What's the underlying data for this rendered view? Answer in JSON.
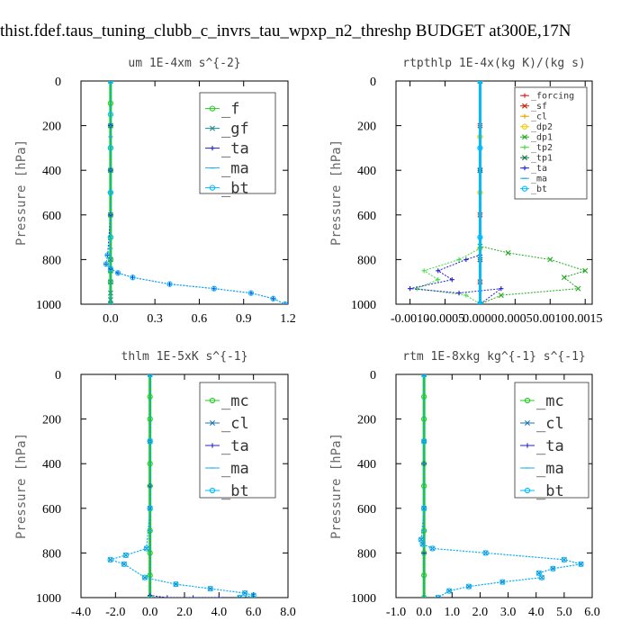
{
  "figure_title": "thist.fdef.taus_tuning_clubb_c_invrs_tau_wpxp_n2_threshp  BUDGET at300E,17N",
  "chart_data": [
    {
      "type": "line",
      "title": "um  1E-4xm s^{-2}",
      "ylabel": "Pressure [hPa]",
      "xlim": [
        -0.2,
        1.2
      ],
      "ylim": [
        1000,
        0
      ],
      "xticks": [
        0.0,
        0.3,
        0.6,
        0.9,
        1.2
      ],
      "xtick_labels": [
        "0.0",
        "0.3",
        "0.6",
        "0.9",
        "1.2"
      ],
      "yticks": [
        0,
        200,
        400,
        600,
        800,
        1000
      ],
      "ytick_labels": [
        "0",
        "200",
        "400",
        "600",
        "800",
        "1000"
      ],
      "legend_position": "top-right",
      "series": [
        {
          "name": "_f",
          "color": "#22cc22",
          "marker": "o",
          "x": [
            0,
            0,
            0,
            0,
            0,
            0,
            0,
            0,
            0,
            0,
            0,
            0
          ],
          "y": [
            0,
            100,
            200,
            300,
            400,
            500,
            600,
            700,
            800,
            850,
            900,
            1000
          ]
        },
        {
          "name": "_gf",
          "color": "#1f8f8f",
          "marker": "x",
          "x": [
            0,
            0,
            0,
            0,
            0,
            0,
            0,
            0,
            0,
            0
          ],
          "y": [
            0,
            200,
            400,
            600,
            800,
            850,
            900,
            950,
            980,
            1000
          ]
        },
        {
          "name": "_ta",
          "color": "#2222cc",
          "marker": "+",
          "x": [
            0,
            0,
            0,
            0,
            -0.02,
            -0.03,
            0,
            0.05,
            0.15,
            0.4,
            0.7,
            0.95,
            1.1,
            1.18
          ],
          "y": [
            0,
            200,
            400,
            600,
            780,
            820,
            840,
            860,
            880,
            910,
            930,
            950,
            975,
            1000
          ]
        },
        {
          "name": "_ma",
          "color": "#22aaee",
          "marker": "-",
          "x": [
            0,
            0,
            0,
            0,
            0
          ],
          "y": [
            0,
            250,
            500,
            750,
            1000
          ]
        },
        {
          "name": "_bt",
          "color": "#00bbff",
          "marker": "o",
          "x": [
            0,
            0,
            0,
            0,
            0,
            -0.02,
            -0.03,
            0,
            0.05,
            0.15,
            0.4,
            0.7,
            0.95,
            1.1,
            1.18
          ],
          "y": [
            0,
            150,
            300,
            500,
            700,
            780,
            820,
            840,
            860,
            880,
            910,
            930,
            950,
            975,
            1000
          ]
        }
      ]
    },
    {
      "type": "line",
      "title": "rtpthlp  1E-4x(kg K)/(kg s)",
      "ylabel": "Pressure [hPa]",
      "xlim": [
        -0.0012,
        0.0016
      ],
      "ylim": [
        1000,
        0
      ],
      "xticks": [
        -0.001,
        -0.0005,
        0.0,
        0.0005,
        0.001,
        0.0015
      ],
      "xtick_labels": [
        "-0.0010",
        "-0.0005",
        "0.0000",
        "0.0005",
        "0.0010",
        "0.0015"
      ],
      "yticks": [
        0,
        200,
        400,
        600,
        800,
        1000
      ],
      "ytick_labels": [
        "0",
        "200",
        "400",
        "600",
        "800",
        "1000"
      ],
      "legend_position": "top-right",
      "series": [
        {
          "name": "_forcing",
          "color": "#dd2222",
          "marker": "+",
          "x": [
            0,
            0,
            0,
            0,
            0,
            0,
            0
          ],
          "y": [
            0,
            200,
            400,
            600,
            800,
            900,
            1000
          ]
        },
        {
          "name": "_sf",
          "color": "#cc2200",
          "marker": "x",
          "x": [
            0,
            0,
            0,
            0,
            0,
            0,
            0
          ],
          "y": [
            0,
            200,
            400,
            600,
            800,
            900,
            1000
          ]
        },
        {
          "name": "_cl",
          "color": "#ddaa00",
          "marker": "+",
          "x": [
            0,
            0,
            0,
            0,
            0
          ],
          "y": [
            0,
            250,
            500,
            750,
            1000
          ]
        },
        {
          "name": "_dp2",
          "color": "#eecc00",
          "marker": "o",
          "x": [
            0,
            0,
            0,
            0,
            0
          ],
          "y": [
            0,
            250,
            500,
            750,
            1000
          ]
        },
        {
          "name": "_dp1",
          "color": "#22aa22",
          "marker": "x",
          "x": [
            0,
            0,
            0,
            0.0004,
            0.001,
            0.0015,
            0.0012,
            0.0014,
            0.0003,
            0
          ],
          "y": [
            0,
            400,
            740,
            770,
            800,
            850,
            880,
            930,
            960,
            1000
          ]
        },
        {
          "name": "_tp2",
          "color": "#44dd44",
          "marker": "+",
          "x": [
            0,
            0,
            0,
            -0.0003,
            -0.0008,
            -0.0006,
            -0.0009,
            -0.0002,
            0
          ],
          "y": [
            0,
            400,
            750,
            800,
            850,
            890,
            930,
            960,
            1000
          ]
        },
        {
          "name": "_tp1",
          "color": "#117744",
          "marker": "x",
          "x": [
            0,
            0,
            0,
            0
          ],
          "y": [
            0,
            400,
            800,
            1000
          ]
        },
        {
          "name": "_ta",
          "color": "#2222cc",
          "marker": "+",
          "x": [
            0,
            0,
            0,
            -0.0002,
            -0.0006,
            -0.0004,
            -0.001,
            -0.0003,
            0.0003,
            0
          ],
          "y": [
            0,
            400,
            780,
            800,
            850,
            890,
            930,
            950,
            930,
            1000
          ]
        },
        {
          "name": "_ma",
          "color": "#22aaee",
          "marker": "-",
          "x": [
            0,
            0,
            0,
            0
          ],
          "y": [
            0,
            300,
            700,
            1000
          ]
        },
        {
          "name": "_bt",
          "color": "#00bbff",
          "marker": "o",
          "x": [
            0,
            0,
            0,
            0
          ],
          "y": [
            0,
            300,
            700,
            1000
          ]
        }
      ]
    },
    {
      "type": "line",
      "title": "thlm  1E-5xK s^{-1}",
      "ylabel": "Pressure [hPa]",
      "xlim": [
        -4.0,
        8.0
      ],
      "ylim": [
        1000,
        0
      ],
      "xticks": [
        -4.0,
        -2.0,
        0.0,
        2.0,
        4.0,
        6.0,
        8.0
      ],
      "xtick_labels": [
        "-4.0",
        "-2.0",
        "0.0",
        "2.0",
        "4.0",
        "6.0",
        "8.0"
      ],
      "yticks": [
        0,
        200,
        400,
        600,
        800,
        1000
      ],
      "ytick_labels": [
        "0",
        "200",
        "400",
        "600",
        "800",
        "1000"
      ],
      "legend_position": "top-right",
      "series": [
        {
          "name": "_mc",
          "color": "#22cc22",
          "marker": "o",
          "x": [
            0,
            0,
            0,
            0,
            0,
            0,
            0,
            0,
            0,
            0,
            0
          ],
          "y": [
            0,
            100,
            200,
            300,
            400,
            500,
            600,
            700,
            800,
            900,
            1000
          ]
        },
        {
          "name": "_cl",
          "color": "#1f77b4",
          "marker": "x",
          "x": [
            0,
            0,
            0,
            -0.2,
            -1.4,
            -2.3,
            -1.5,
            -0.3,
            1.5,
            3.5,
            5.5,
            6.0,
            5.2
          ],
          "y": [
            0,
            300,
            600,
            780,
            810,
            830,
            850,
            910,
            940,
            960,
            980,
            990,
            1000
          ]
        },
        {
          "name": "_ta",
          "color": "#2222cc",
          "marker": "+",
          "x": [
            0,
            0,
            0,
            1.0,
            2.5,
            4.0
          ],
          "y": [
            0,
            500,
            990,
            1000,
            1000,
            1000
          ]
        },
        {
          "name": "_ma",
          "color": "#22aaee",
          "marker": "-",
          "x": [
            0,
            0,
            0,
            0
          ],
          "y": [
            0,
            300,
            700,
            1000
          ]
        },
        {
          "name": "_bt",
          "color": "#00bbff",
          "marker": "o",
          "x": [
            0,
            0,
            0,
            -0.2,
            -1.4,
            -2.3,
            -1.5,
            -0.3,
            1.5,
            3.5,
            5.5,
            6.0,
            5.2
          ],
          "y": [
            0,
            300,
            600,
            780,
            810,
            830,
            850,
            910,
            940,
            960,
            980,
            990,
            1000
          ]
        }
      ]
    },
    {
      "type": "line",
      "title": "rtm  1E-8xkg kg^{-1} s^{-1}",
      "ylabel": "Pressure [hPa]",
      "xlim": [
        -1.0,
        6.0
      ],
      "ylim": [
        1000,
        0
      ],
      "xticks": [
        -1.0,
        0.0,
        1.0,
        2.0,
        3.0,
        4.0,
        5.0,
        6.0
      ],
      "xtick_labels": [
        "-1.0",
        "0.0",
        "1.0",
        "2.0",
        "3.0",
        "4.0",
        "5.0",
        "6.0"
      ],
      "yticks": [
        0,
        200,
        400,
        600,
        800,
        1000
      ],
      "ytick_labels": [
        "0",
        "200",
        "400",
        "600",
        "800",
        "1000"
      ],
      "legend_position": "top-right",
      "series": [
        {
          "name": "_mc",
          "color": "#22cc22",
          "marker": "o",
          "x": [
            0,
            0,
            0,
            0,
            0,
            0,
            0,
            0,
            0,
            0,
            0
          ],
          "y": [
            0,
            100,
            200,
            300,
            400,
            500,
            600,
            700,
            800,
            900,
            1000
          ]
        },
        {
          "name": "_cl",
          "color": "#1f77b4",
          "marker": "x",
          "x": [
            0,
            0,
            0,
            -0.1,
            -0.05,
            0.3,
            2.2,
            5.0,
            5.6,
            4.6,
            4.1,
            4.2,
            2.8,
            1.6,
            0.9,
            0.5
          ],
          "y": [
            0,
            300,
            600,
            740,
            760,
            780,
            800,
            830,
            850,
            870,
            890,
            910,
            930,
            950,
            970,
            1000
          ]
        },
        {
          "name": "_ta",
          "color": "#2222cc",
          "marker": "+",
          "x": [
            0,
            0,
            0,
            0
          ],
          "y": [
            0,
            400,
            800,
            1000
          ]
        },
        {
          "name": "_ma",
          "color": "#22aaee",
          "marker": "-",
          "x": [
            0,
            0,
            0,
            0
          ],
          "y": [
            0,
            300,
            700,
            1000
          ]
        },
        {
          "name": "_bt",
          "color": "#00bbff",
          "marker": "o",
          "x": [
            0,
            0,
            0,
            -0.1,
            -0.05,
            0.3,
            2.2,
            5.0,
            5.6,
            4.6,
            4.1,
            4.2,
            2.8,
            1.6,
            0.9,
            0.5
          ],
          "y": [
            0,
            300,
            600,
            740,
            760,
            780,
            800,
            830,
            850,
            870,
            890,
            910,
            930,
            950,
            970,
            1000
          ]
        }
      ]
    }
  ]
}
